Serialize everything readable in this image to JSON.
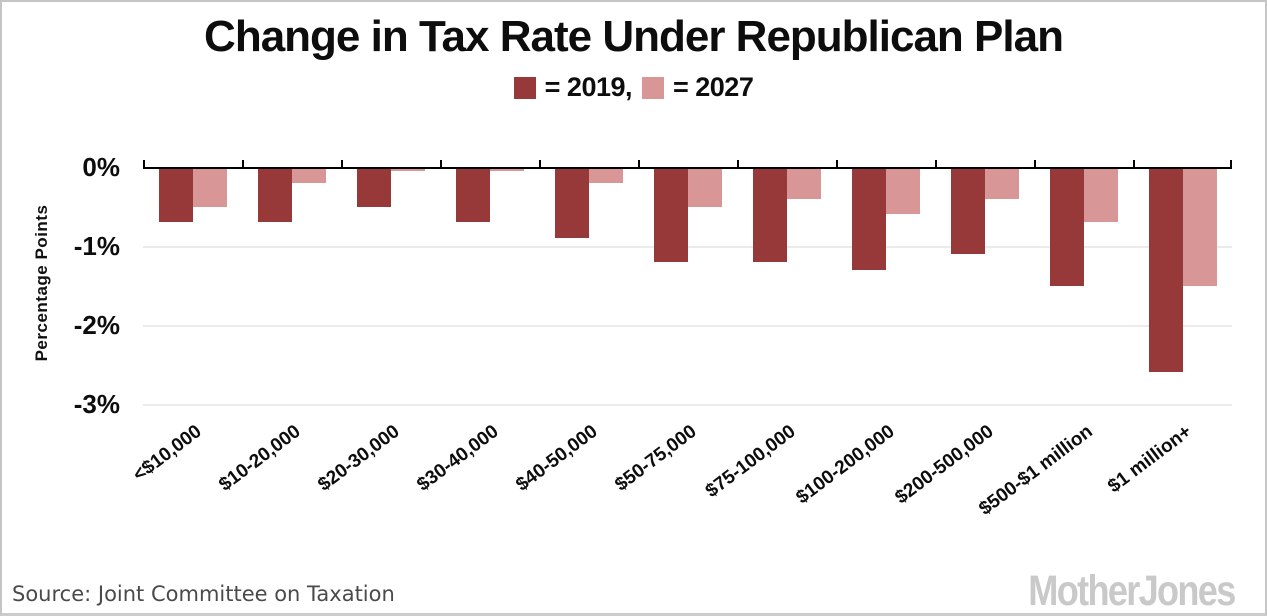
{
  "title": "Change in Tax Rate Under Republican Plan",
  "legend": {
    "items": [
      {
        "name": "2019",
        "label": "= 2019,",
        "color": "#963938"
      },
      {
        "name": "2027",
        "label": "= 2027",
        "color": "#d99697"
      }
    ]
  },
  "y_axis": {
    "title": "Percentage Points",
    "tick_labels": [
      "0%",
      "-1%",
      "-2%",
      "-3%"
    ]
  },
  "footer": {
    "source": "Source: Joint Committee on Taxation",
    "logo": "MotherJones"
  },
  "colors": {
    "bar_2019": "#963938",
    "bar_2027": "#d99697",
    "gridline": "#ebebeb",
    "axis": "#000000"
  },
  "chart_data": {
    "type": "bar",
    "title": "Change in Tax Rate Under Republican Plan",
    "categories": [
      "<$10,000",
      "$10-20,000",
      "$20-30,000",
      "$30-40,000",
      "$40-50,000",
      "$50-75,000",
      "$75-100,000",
      "$100-200,000",
      "$200-500,000",
      "$500-$1 million",
      "$1 million+"
    ],
    "series": [
      {
        "name": "2019",
        "color": "#963938",
        "values": [
          -0.7,
          -0.7,
          -0.5,
          -0.7,
          -0.9,
          -1.2,
          -1.2,
          -1.3,
          -1.1,
          -1.5,
          -2.6
        ]
      },
      {
        "name": "2027",
        "color": "#d99697",
        "values": [
          -0.5,
          -0.2,
          -0.05,
          -0.05,
          -0.2,
          -0.5,
          -0.4,
          -0.6,
          -0.4,
          -0.7,
          -1.5
        ]
      }
    ],
    "ylabel": "Percentage Points",
    "xlabel": "",
    "ylim": [
      -3,
      0
    ],
    "yticks": [
      0,
      -1,
      -2,
      -3
    ],
    "grid": true,
    "legend_position": "top",
    "source": "Joint Committee on Taxation"
  }
}
